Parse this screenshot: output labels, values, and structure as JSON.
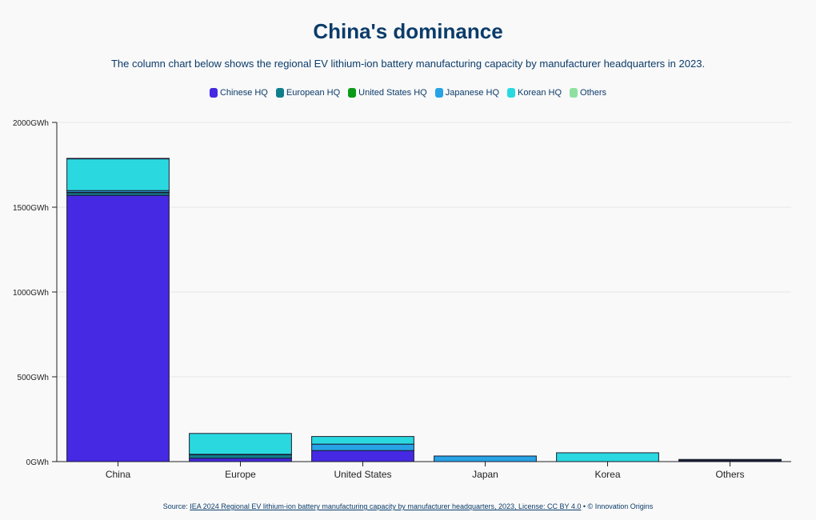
{
  "chart_data": {
    "type": "bar",
    "stacked": true,
    "title": "China's dominance",
    "subtitle": "The column chart below shows the regional EV lithium-ion battery manufacturing capacity by manufacturer headquarters in 2023.",
    "categories": [
      "China",
      "Europe",
      "United States",
      "Japan",
      "Korea",
      "Others"
    ],
    "series": [
      {
        "name": "Chinese HQ",
        "color": "#4529e3",
        "values": [
          1570,
          20,
          65,
          0,
          0,
          0
        ]
      },
      {
        "name": "European HQ",
        "color": "#0f7f8c",
        "values": [
          15,
          20,
          0,
          0,
          0,
          5
        ]
      },
      {
        "name": "United States HQ",
        "color": "#0a9a1a",
        "values": [
          3,
          3,
          0,
          0,
          0,
          0
        ]
      },
      {
        "name": "Japanese HQ",
        "color": "#27a3e6",
        "values": [
          10,
          0,
          38,
          33,
          0,
          3
        ]
      },
      {
        "name": "Korean HQ",
        "color": "#2ad9e0",
        "values": [
          187,
          123,
          45,
          0,
          52,
          5
        ]
      },
      {
        "name": "Others",
        "color": "#8fe0a0",
        "values": [
          3,
          0,
          0,
          0,
          0,
          0
        ]
      }
    ],
    "yticks": [
      "0GWh",
      "500GWh",
      "1000GWh",
      "1500GWh",
      "2000GWh"
    ],
    "ylim": [
      0,
      2000
    ],
    "legend_position": "top-center",
    "grid": true
  },
  "source": {
    "prefix": "Source: ",
    "link_text": "IEA 2024 Regional EV lithium-ion battery manufacturing capacity by manufacturer headquarters, 2023, License: CC BY 4.0",
    "suffix": " • © Innovation Origins"
  }
}
